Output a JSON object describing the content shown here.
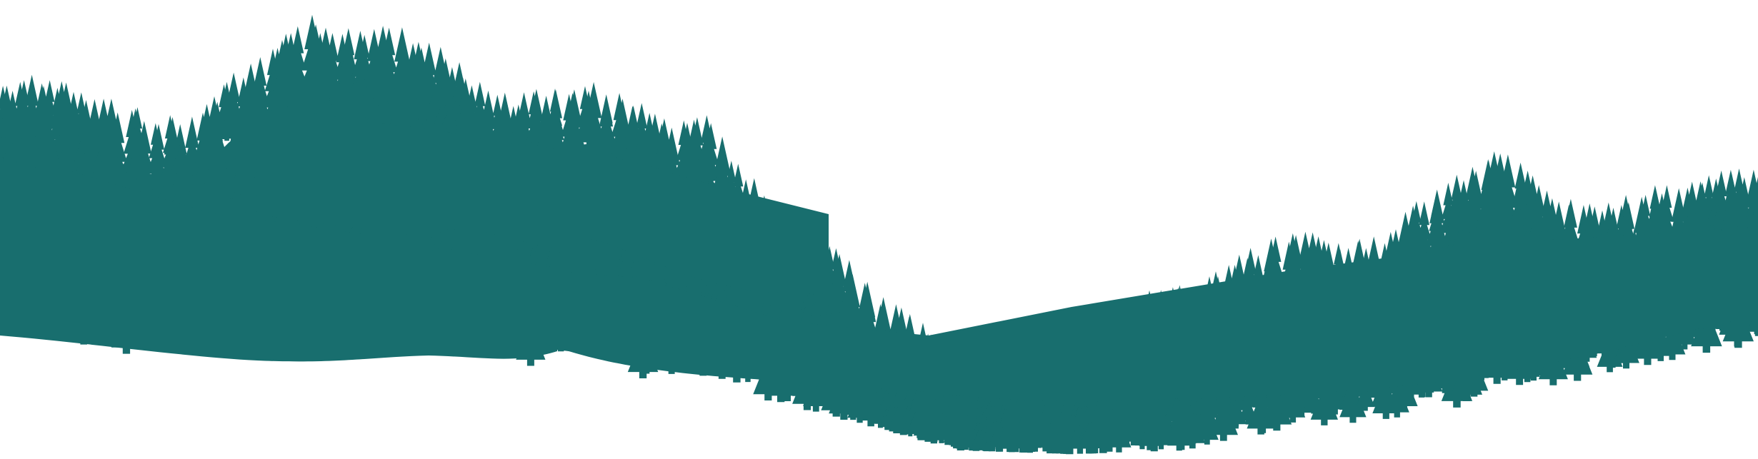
{
  "scene": {
    "subject": "forest-silhouette",
    "colors": {
      "forest": "#186E6E",
      "background": "#FFFFFF"
    },
    "icons": [
      "tree-icon"
    ]
  }
}
